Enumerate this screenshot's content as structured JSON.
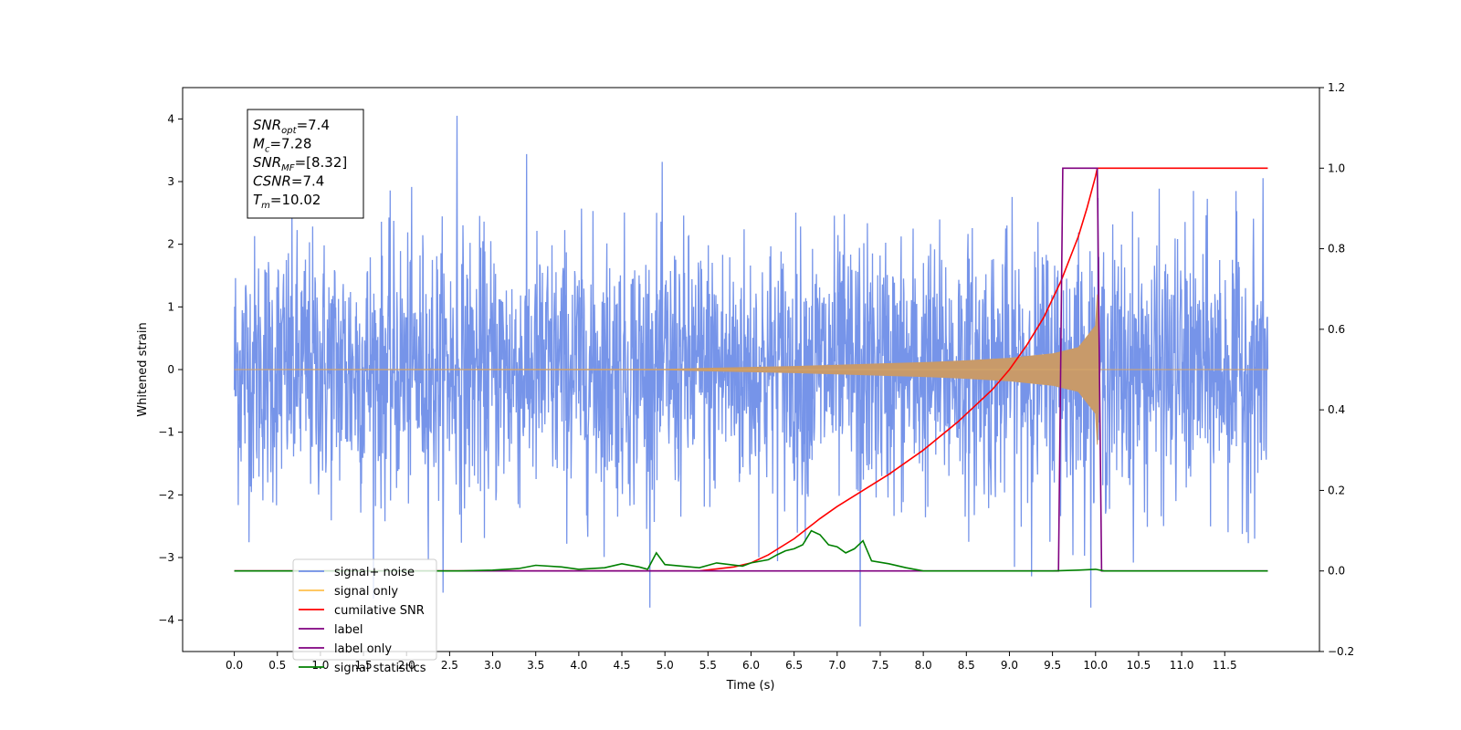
{
  "chart_data": {
    "type": "line",
    "title": "",
    "xlabel": "Time (s)",
    "ylabel": "Whitened strain",
    "y2label": "",
    "xlim": [
      -0.6,
      12.6
    ],
    "ylim": [
      -4.5,
      4.5
    ],
    "y2lim": [
      -0.2,
      1.2
    ],
    "xticks": [
      "0.0",
      "0.5",
      "1.0",
      "1.5",
      "2.0",
      "2.5",
      "3.0",
      "3.5",
      "4.0",
      "4.5",
      "5.0",
      "5.5",
      "6.0",
      "6.5",
      "7.0",
      "7.5",
      "8.0",
      "8.5",
      "9.0",
      "9.5",
      "10.0",
      "10.5",
      "11.0",
      "11.5"
    ],
    "yticks": [
      "4",
      "3",
      "2",
      "1",
      "0",
      "−1",
      "−2",
      "−3",
      "−4"
    ],
    "y2ticks": [
      "1.2",
      "1.0",
      "0.8",
      "0.6",
      "0.4",
      "0.2",
      "0.0",
      "−0.2"
    ],
    "grid": false,
    "legend_location": "lower-left",
    "annotation": {
      "lines": [
        {
          "sym": "SNR",
          "sub": "opt",
          "val": "=7.4"
        },
        {
          "sym": "M",
          "sub": "c",
          "val": "=7.28"
        },
        {
          "sym": "SNR",
          "sub": "MF",
          "val": "=[8.32]"
        },
        {
          "sym": "CSNR",
          "sub": "",
          "val": "=7.4"
        },
        {
          "sym": "T",
          "sub": "m",
          "val": "=10.02"
        }
      ]
    },
    "legend": [
      {
        "label": "signal+ noise",
        "color": "#6f8ee8"
      },
      {
        "label": "signal only",
        "color": "#ffc04d"
      },
      {
        "label": "cumilative SNR",
        "color": "#ff0000"
      },
      {
        "label": "label",
        "color": "#800080"
      },
      {
        "label": "label only",
        "color": "#800080"
      },
      {
        "label": "signal statistics",
        "color": "#008000"
      }
    ],
    "series": [
      {
        "name": "signal+ noise",
        "axis": "left",
        "color": "#6f8ee8",
        "description_values": {
          "x_range": [
            0.0,
            12.0
          ],
          "approx_amplitude_std": 1.0,
          "extremes": {
            "max": 4.05,
            "min": -4.1
          }
        }
      },
      {
        "name": "signal only",
        "axis": "left",
        "color": "#c89a6a",
        "envelope": {
          "x": [
            0,
            5,
            5.5,
            6,
            6.5,
            7,
            7.5,
            8,
            8.5,
            9,
            9.5,
            9.8,
            10.0,
            10.02,
            10.05,
            12.0
          ],
          "amp": [
            0,
            0.005,
            0.02,
            0.035,
            0.05,
            0.07,
            0.09,
            0.11,
            0.14,
            0.18,
            0.25,
            0.35,
            0.7,
            1.2,
            0,
            0
          ]
        }
      },
      {
        "name": "cumilative SNR",
        "axis": "right",
        "x": [
          0,
          5.4,
          5.8,
          6.0,
          6.2,
          6.5,
          6.8,
          7.0,
          7.3,
          7.6,
          8.0,
          8.4,
          8.8,
          9.0,
          9.2,
          9.4,
          9.6,
          9.8,
          9.9,
          10.0,
          10.02,
          12.0
        ],
        "y": [
          0,
          0,
          0.01,
          0.02,
          0.04,
          0.08,
          0.13,
          0.16,
          0.2,
          0.24,
          0.3,
          0.37,
          0.45,
          0.5,
          0.56,
          0.63,
          0.72,
          0.83,
          0.9,
          0.98,
          1.0,
          1.0
        ]
      },
      {
        "name": "label",
        "axis": "right",
        "x": [
          0,
          9.57,
          9.62,
          10.0,
          10.02,
          10.07,
          12.0
        ],
        "y": [
          0,
          0,
          1,
          1,
          1,
          0,
          0
        ]
      },
      {
        "name": "signal statistics",
        "axis": "right",
        "x": [
          0,
          2.6,
          3.0,
          3.3,
          3.5,
          3.8,
          4.0,
          4.3,
          4.5,
          4.7,
          4.8,
          4.9,
          5.0,
          5.2,
          5.4,
          5.6,
          5.9,
          6.0,
          6.2,
          6.3,
          6.4,
          6.5,
          6.6,
          6.7,
          6.8,
          6.9,
          7.0,
          7.1,
          7.2,
          7.3,
          7.4,
          7.6,
          7.8,
          8.0,
          9.5,
          9.8,
          10.0,
          10.1,
          12.0
        ],
        "y": [
          0,
          0,
          0.002,
          0.006,
          0.014,
          0.01,
          0.004,
          0.008,
          0.018,
          0.01,
          0.004,
          0.045,
          0.016,
          0.012,
          0.008,
          0.02,
          0.012,
          0.02,
          0.028,
          0.04,
          0.05,
          0.055,
          0.065,
          0.1,
          0.09,
          0.065,
          0.06,
          0.045,
          0.055,
          0.075,
          0.025,
          0.018,
          0.008,
          0,
          0,
          0.002,
          0.004,
          0,
          0
        ]
      }
    ]
  }
}
